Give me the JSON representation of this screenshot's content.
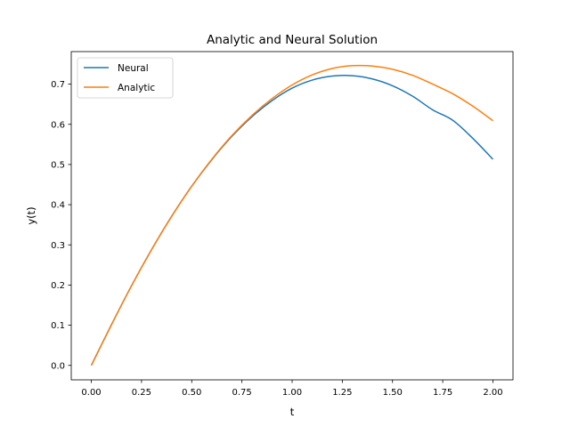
{
  "chart_data": {
    "type": "line",
    "title": "Analytic and Neural Solution",
    "xlabel": "t",
    "ylabel": "y(t)",
    "xlim": [
      -0.1,
      2.1
    ],
    "ylim": [
      -0.036,
      0.781
    ],
    "xticks": [
      0.0,
      0.25,
      0.5,
      0.75,
      1.0,
      1.25,
      1.5,
      1.75,
      2.0
    ],
    "xtick_labels": [
      "0.00",
      "0.25",
      "0.50",
      "0.75",
      "1.00",
      "1.25",
      "1.50",
      "1.75",
      "2.00"
    ],
    "yticks": [
      0.0,
      0.1,
      0.2,
      0.3,
      0.4,
      0.5,
      0.6,
      0.7
    ],
    "ytick_labels": [
      "0.0",
      "0.1",
      "0.2",
      "0.3",
      "0.4",
      "0.5",
      "0.6",
      "0.7"
    ],
    "grid": false,
    "legend_position": "top-left",
    "x": [
      0.0,
      0.1,
      0.2,
      0.3,
      0.4,
      0.5,
      0.6,
      0.7,
      0.8,
      0.9,
      1.0,
      1.1,
      1.2,
      1.3,
      1.4,
      1.5,
      1.6,
      1.7,
      1.8,
      1.9,
      2.0
    ],
    "series": [
      {
        "name": "Neural",
        "color": "#1f77b4",
        "values": [
          0.0,
          0.101,
          0.198,
          0.288,
          0.371,
          0.446,
          0.512,
          0.57,
          0.619,
          0.659,
          0.69,
          0.71,
          0.72,
          0.721,
          0.713,
          0.696,
          0.67,
          0.636,
          0.61,
          0.565,
          0.513
        ]
      },
      {
        "name": "Analytic",
        "color": "#ff7f0e",
        "values": [
          0.0,
          0.101,
          0.198,
          0.288,
          0.371,
          0.446,
          0.513,
          0.572,
          0.622,
          0.664,
          0.698,
          0.723,
          0.739,
          0.746,
          0.745,
          0.737,
          0.722,
          0.7,
          0.676,
          0.645,
          0.609
        ]
      }
    ]
  }
}
